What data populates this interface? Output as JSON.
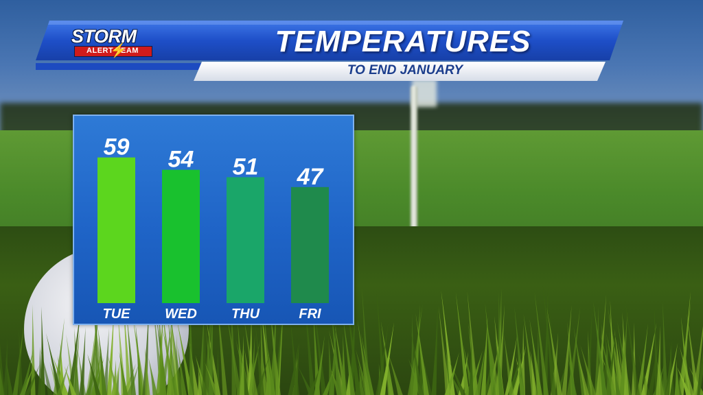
{
  "header": {
    "title": "TEMPERATURES",
    "subtitle": "TO END JANUARY",
    "logo_top": "STORM",
    "logo_bottom": "ALERT TEAM"
  },
  "colors": {
    "header_blue": "#1e4fc8",
    "subtitle_text": "#1b3d8c",
    "panel_blue": "#1f64c7",
    "bar_colors": [
      "#5cd61e",
      "#19c12e",
      "#1aa669",
      "#1f8a4c"
    ]
  },
  "chart_data": {
    "type": "bar",
    "title": "TEMPERATURES",
    "subtitle": "TO END JANUARY",
    "categories": [
      "TUE",
      "WED",
      "THU",
      "FRI"
    ],
    "values": [
      59,
      54,
      51,
      47
    ],
    "data_labels": true,
    "grid": false,
    "legend": "none"
  },
  "scene": {
    "background": "golf-course"
  }
}
